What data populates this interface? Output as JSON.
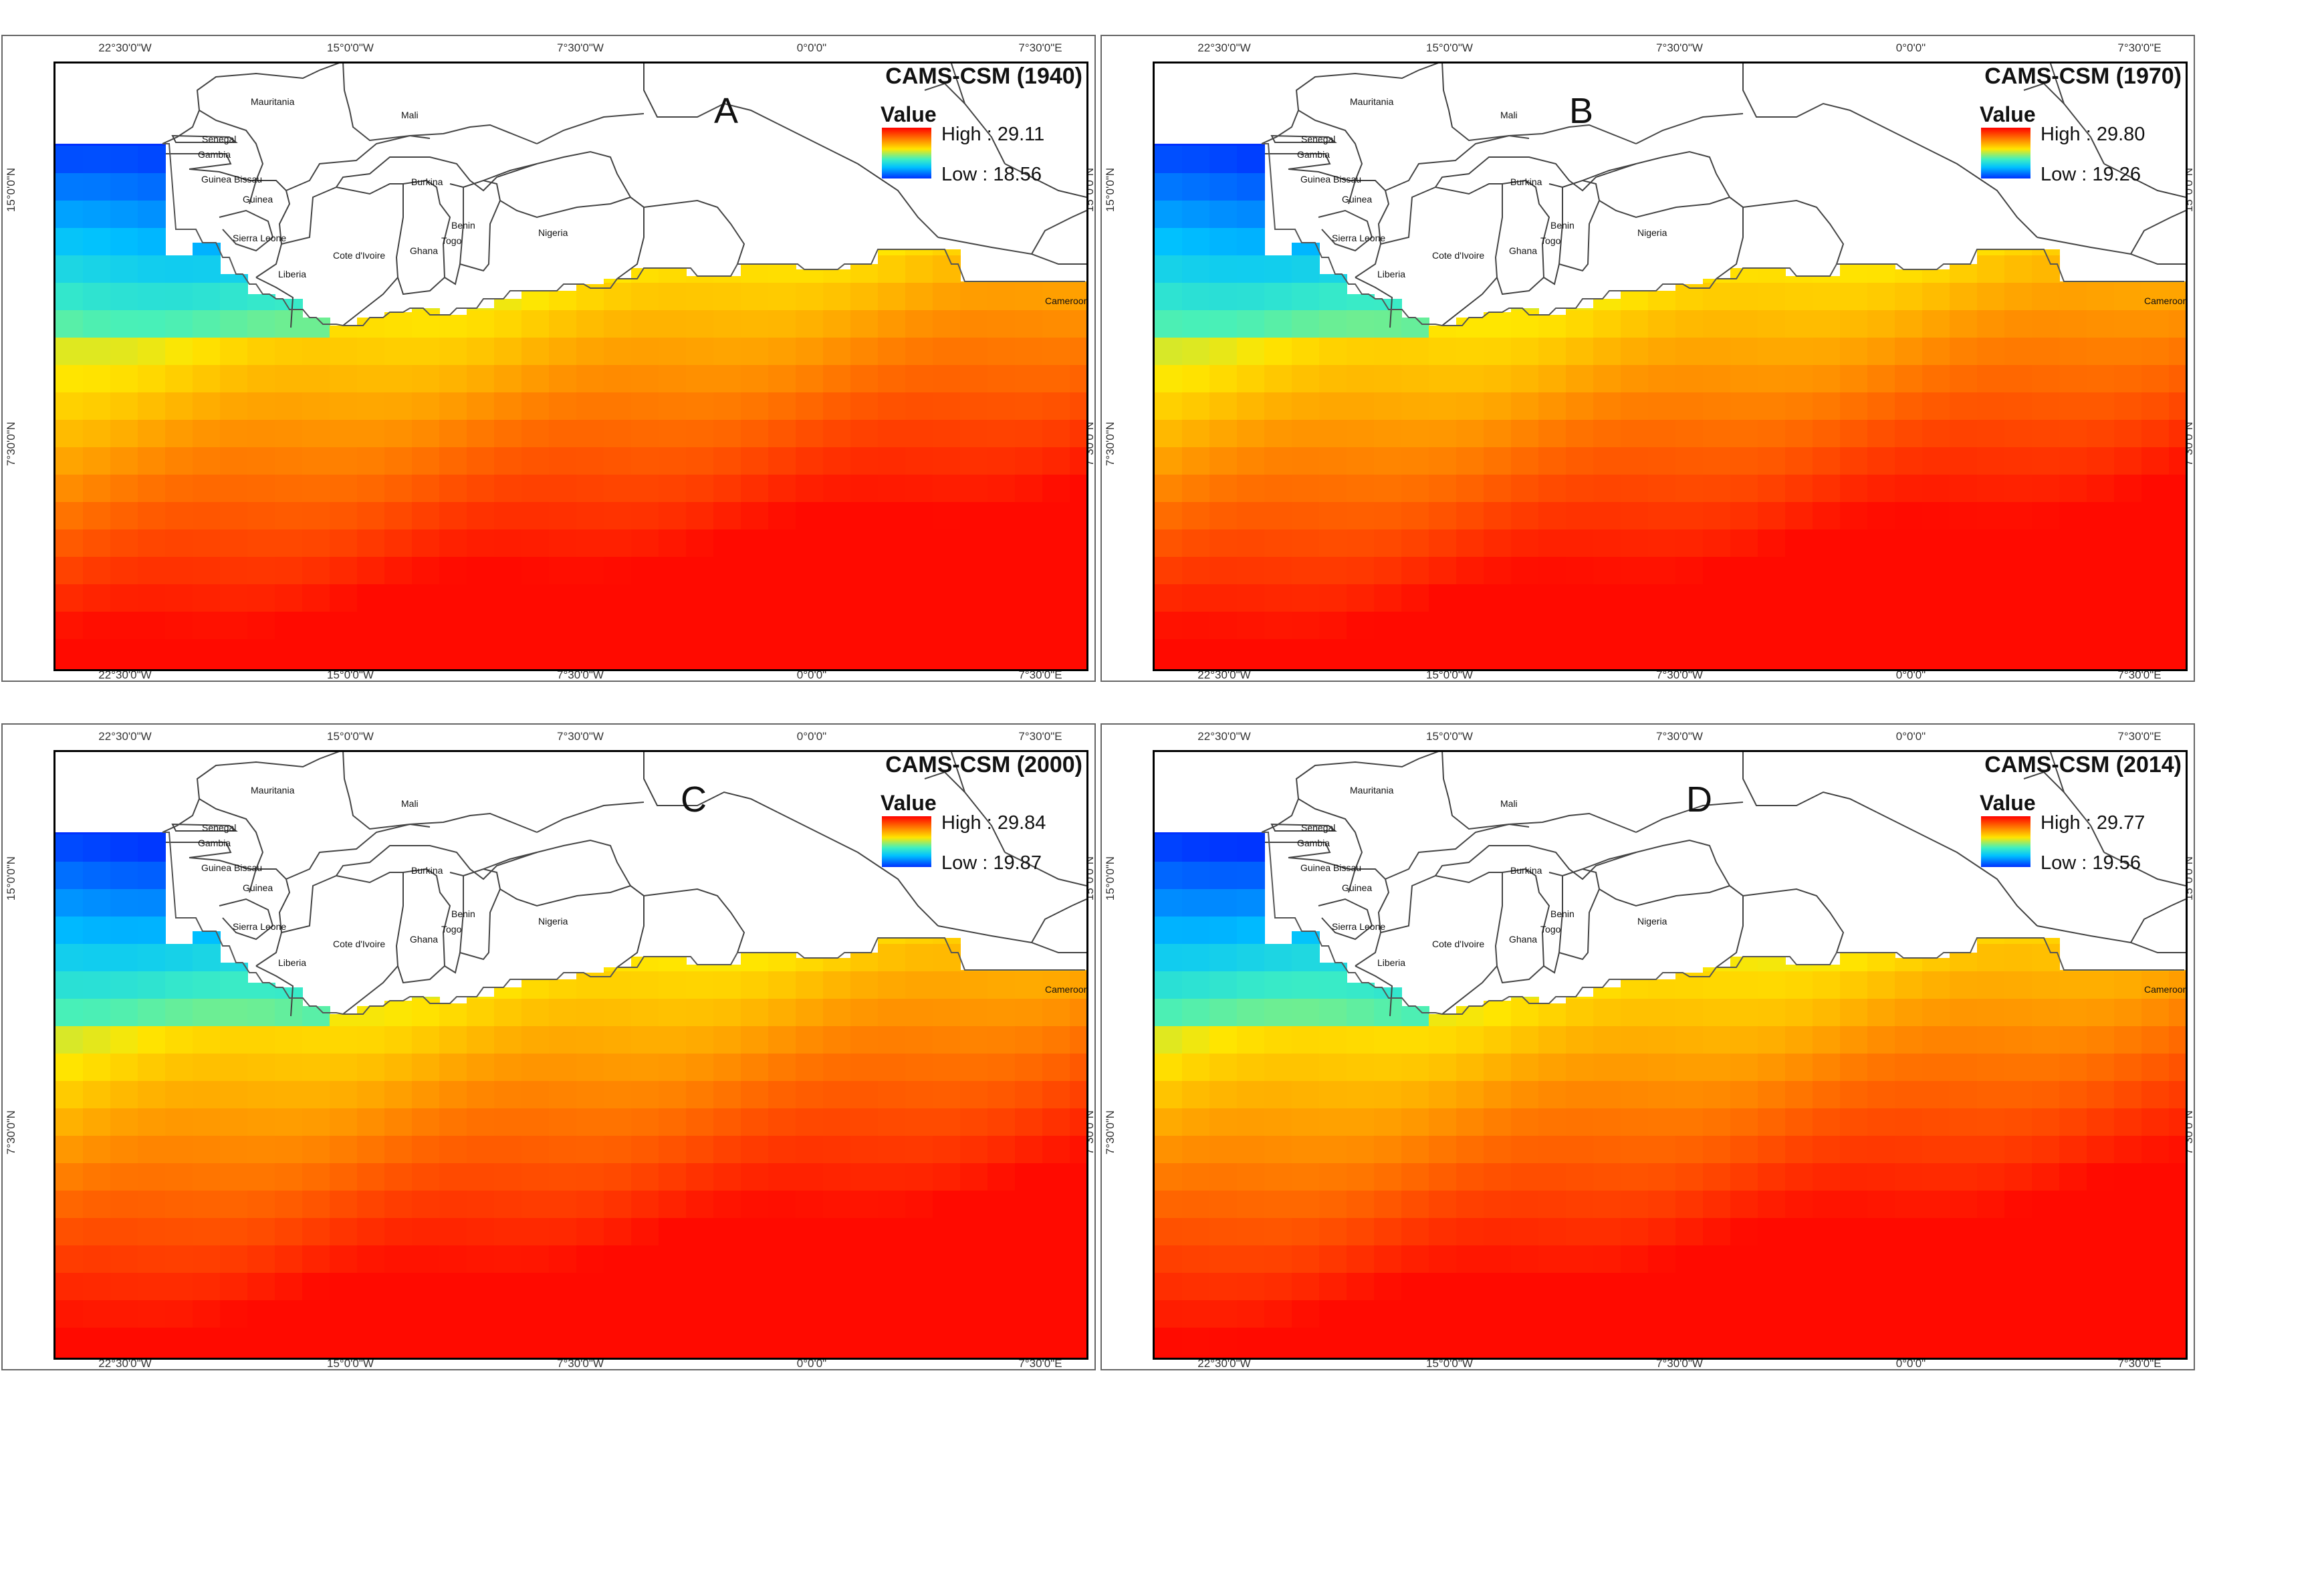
{
  "ticks": {
    "lon_top": [
      "22°30'0\"W",
      "15°0'0\"W",
      "7°30'0\"W",
      "0°0'0\"",
      "7°30'0\"E"
    ],
    "lon_bottom": [
      "22°30'0\"W",
      "15°0'0\"W",
      "7°30'0\"W",
      "0°0'0\"",
      "7°30'0\"E"
    ],
    "lat_left": [
      "15°0'0\"N",
      "7°30'0\"N"
    ],
    "lat_right": [
      "15°0'0\"N",
      "7°30'0\"N"
    ]
  },
  "legend_title": "Value",
  "countries": {
    "mauritania": "Mauritania",
    "mali": "Mali",
    "senegal": "Senegal",
    "gambia": "Gambia",
    "guinea_bissau": "Guinea Bissau",
    "guinea": "Guinea",
    "sierra_leone": "Sierra Leone",
    "liberia": "Liberia",
    "cote_divoire": "Cote d'Ivoire",
    "ghana": "Ghana",
    "togo": "Togo",
    "benin": "Benin",
    "burkina": "Burkina",
    "nigeria": "Nigeria",
    "cameroon": "Cameroon"
  },
  "panels": [
    {
      "letter": "A",
      "title": "CAMS-CSM (1940)",
      "high": "High : 29.11",
      "low": "Low : 18.56",
      "high_value": 29.11,
      "low_value": 18.56
    },
    {
      "letter": "B",
      "title": "CAMS-CSM (1970)",
      "high": "High : 29.80",
      "low": "Low : 19.26",
      "high_value": 29.8,
      "low_value": 19.26
    },
    {
      "letter": "C",
      "title": "CAMS-CSM (2000)",
      "high": "High : 29.84",
      "low": "Low : 19.87",
      "high_value": 29.84,
      "low_value": 19.87
    },
    {
      "letter": "D",
      "title": "CAMS-CSM (2014)",
      "high": "High : 29.77",
      "low": "Low : 19.56",
      "high_value": 29.77,
      "low_value": 19.56
    }
  ],
  "colors": {
    "high": "#ff0000",
    "mid": "#ffe600",
    "cyan": "#40f0c0",
    "low": "#0030ff",
    "border": "#444444"
  }
}
